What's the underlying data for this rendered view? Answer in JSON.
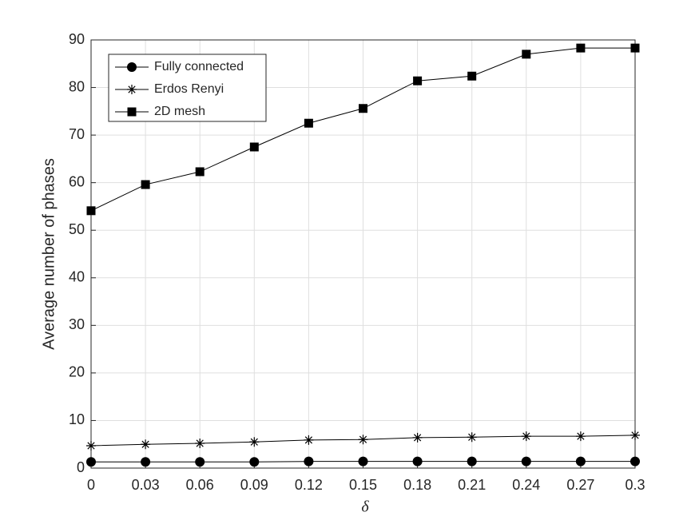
{
  "chart_data": {
    "type": "line",
    "x_label": "δ",
    "y_label": "Average number of phases",
    "x": [
      0,
      0.03,
      0.06,
      0.09,
      0.12,
      0.15,
      0.18,
      0.21,
      0.24,
      0.27,
      0.3
    ],
    "series": [
      {
        "name": "Fully connected",
        "color": "#000000",
        "marker": "circle",
        "values": [
          1.3,
          1.3,
          1.3,
          1.3,
          1.4,
          1.4,
          1.4,
          1.4,
          1.4,
          1.4,
          1.4
        ]
      },
      {
        "name": "Erdos Renyi",
        "color": "#000000",
        "marker": "asterisk",
        "values": [
          4.7,
          5.0,
          5.2,
          5.5,
          5.9,
          6.0,
          6.4,
          6.5,
          6.7,
          6.7,
          6.9
        ]
      },
      {
        "name": "2D mesh",
        "color": "#000000",
        "marker": "square",
        "values": [
          54.1,
          59.6,
          62.3,
          67.5,
          72.5,
          75.6,
          81.4,
          82.4,
          87.0,
          88.3,
          88.3
        ]
      }
    ],
    "xlim": [
      0,
      0.3
    ],
    "xticks": [
      0,
      0.03,
      0.06,
      0.09,
      0.12,
      0.15,
      0.18,
      0.21,
      0.24,
      0.27,
      0.3
    ],
    "ylim": [
      0,
      90
    ],
    "yticks": [
      0,
      10,
      20,
      30,
      40,
      50,
      60,
      70,
      80,
      90
    ],
    "grid": true,
    "legend_position": "upper-left"
  }
}
